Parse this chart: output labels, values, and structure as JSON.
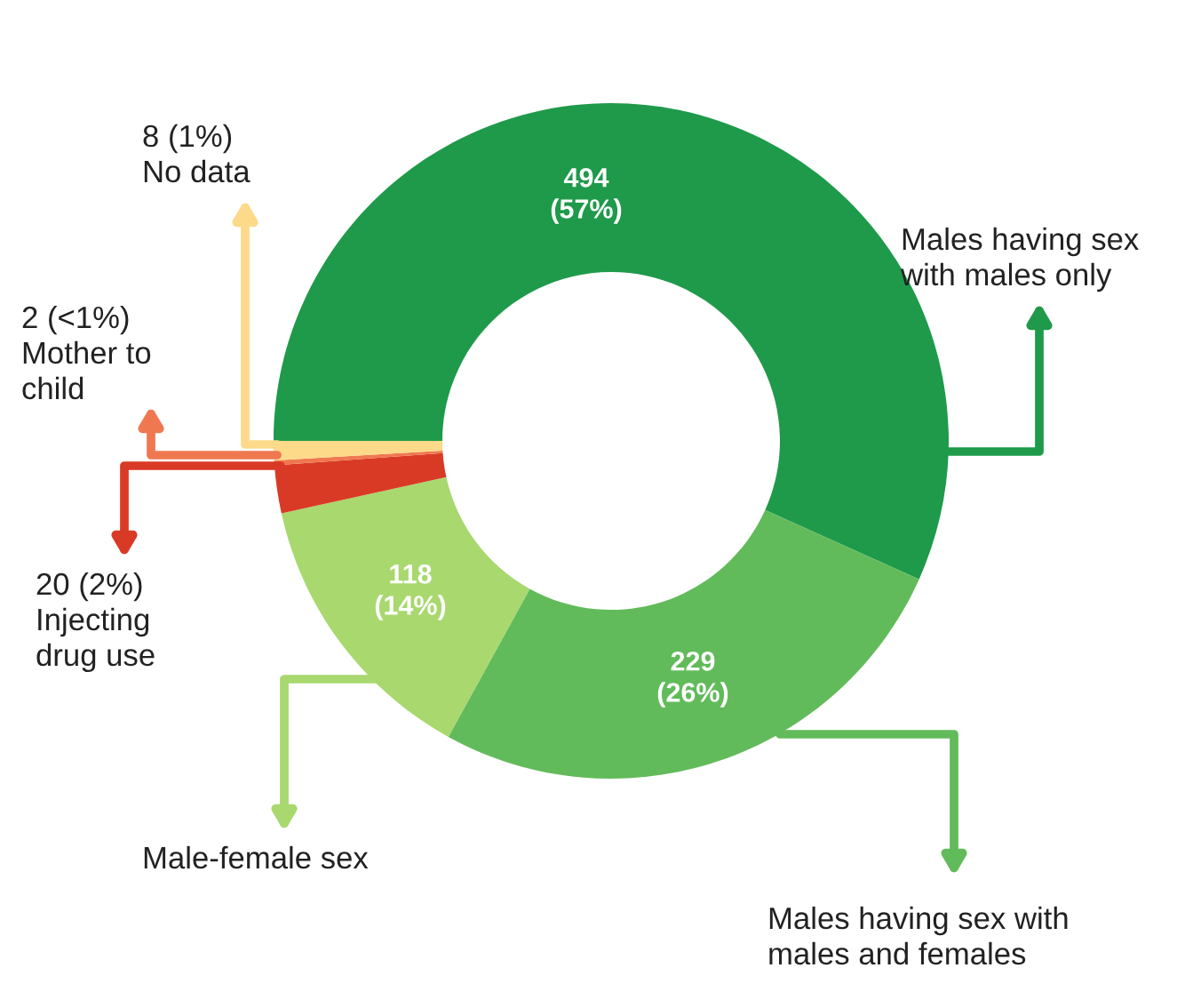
{
  "chart_data": {
    "type": "donut",
    "categories": [
      "Males having sex\nwith males only",
      "Males having sex with\nmales and females",
      "Male-female sex",
      "Injecting\ndrug use",
      "Mother to\nchild",
      "No data"
    ],
    "values": [
      494,
      229,
      118,
      20,
      2,
      8
    ],
    "colors": [
      "#1e9a4a",
      "#62bb5a",
      "#a8d86e",
      "#d93a26",
      "#f07850",
      "#fdd98a"
    ],
    "value_labels": [
      "494\n(57%)",
      "229\n(26%)",
      "118\n(14%)",
      "20 (2%)",
      "2 (<1%)",
      "8 (1%)"
    ]
  }
}
